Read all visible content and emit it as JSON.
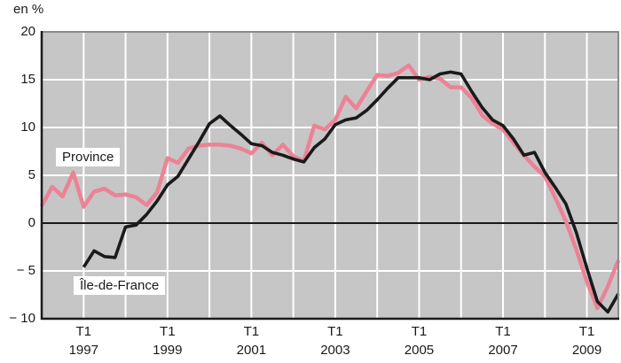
{
  "title": "en %",
  "legend": {
    "province_label": "Province",
    "idf_label": "Île-de-France"
  },
  "colors": {
    "plot_background": "#c6c6c6",
    "gridline": "#ffffff",
    "zero_line": "#1a1a1a",
    "border_dark": "#1a1a1a",
    "border_light": "#8a8a8a",
    "province_line": "#ec8296",
    "idf_line": "#1a1a1a"
  },
  "chart_data": {
    "type": "line",
    "title": "en %",
    "ylabel": "en %",
    "xlabel": "",
    "ylim": [
      -10,
      20
    ],
    "grid": true,
    "x": [
      "1996 T1",
      "1996 T2",
      "1996 T3",
      "1996 T4",
      "1997 T1",
      "1997 T2",
      "1997 T3",
      "1997 T4",
      "1998 T1",
      "1998 T2",
      "1998 T3",
      "1998 T4",
      "1999 T1",
      "1999 T2",
      "1999 T3",
      "1999 T4",
      "2000 T1",
      "2000 T2",
      "2000 T3",
      "2000 T4",
      "2001 T1",
      "2001 T2",
      "2001 T3",
      "2001 T4",
      "2002 T1",
      "2002 T2",
      "2002 T3",
      "2002 T4",
      "2003 T1",
      "2003 T2",
      "2003 T3",
      "2003 T4",
      "2004 T1",
      "2004 T2",
      "2004 T3",
      "2004 T4",
      "2005 T1",
      "2005 T2",
      "2005 T3",
      "2005 T4",
      "2006 T1",
      "2006 T2",
      "2006 T3",
      "2006 T4",
      "2007 T1",
      "2007 T2",
      "2007 T3",
      "2007 T4",
      "2008 T1",
      "2008 T2",
      "2008 T3",
      "2008 T4",
      "2009 T1",
      "2009 T2",
      "2009 T3",
      "2009 T4"
    ],
    "series": [
      {
        "name": "Province",
        "color": "#ec8296",
        "values": [
          1.8,
          3.8,
          2.8,
          5.3,
          1.7,
          3.3,
          3.6,
          2.9,
          3.0,
          2.7,
          1.9,
          3.2,
          6.8,
          6.3,
          7.8,
          8.1,
          8.2,
          8.2,
          8.1,
          7.8,
          7.3,
          8.4,
          7.1,
          8.2,
          7.0,
          6.5,
          10.2,
          9.8,
          10.8,
          13.2,
          12.0,
          13.8,
          15.5,
          15.4,
          15.7,
          16.5,
          15.0,
          15.3,
          15.1,
          14.2,
          14.2,
          13.1,
          11.3,
          10.4,
          9.8,
          8.4,
          7.1,
          5.9,
          4.9,
          2.6,
          0.2,
          -2.8,
          -6.1,
          -8.9,
          -6.6,
          -3.9
        ]
      },
      {
        "name": "Île-de-France",
        "color": "#1a1a1a",
        "values": [
          null,
          null,
          null,
          null,
          -4.6,
          -2.9,
          -3.5,
          -3.6,
          -0.4,
          -0.2,
          0.9,
          2.3,
          4.0,
          4.9,
          6.7,
          8.5,
          10.4,
          11.2,
          10.2,
          9.3,
          8.3,
          8.1,
          7.4,
          7.1,
          6.7,
          6.4,
          7.9,
          8.8,
          10.3,
          10.8,
          11.0,
          11.8,
          12.9,
          14.1,
          15.2,
          15.2,
          15.2,
          15.0,
          15.6,
          15.8,
          15.6,
          13.8,
          12.1,
          10.8,
          10.2,
          8.8,
          7.1,
          7.4,
          5.3,
          3.7,
          2.0,
          -1.0,
          -4.7,
          -8.2,
          -9.3,
          -7.4
        ]
      }
    ],
    "yticks": [
      {
        "value": 20,
        "label": "20"
      },
      {
        "value": 15,
        "label": "15"
      },
      {
        "value": 10,
        "label": "10"
      },
      {
        "value": 5,
        "label": "5"
      },
      {
        "value": 0,
        "label": "0"
      },
      {
        "value": -5,
        "label": "− 5"
      },
      {
        "value": -10,
        "label": "− 10"
      }
    ],
    "hgrid_values": [
      15,
      10,
      5,
      -5
    ],
    "vgrid_indices": [
      4,
      8,
      12,
      16,
      20,
      24,
      28,
      32,
      36,
      40,
      44,
      48,
      52
    ],
    "xticks": [
      {
        "index": 4,
        "period": "T1",
        "year": "1997"
      },
      {
        "index": 12,
        "period": "T1",
        "year": "1999"
      },
      {
        "index": 20,
        "period": "T1",
        "year": "2001"
      },
      {
        "index": 28,
        "period": "T1",
        "year": "2003"
      },
      {
        "index": 36,
        "period": "T1",
        "year": "2005"
      },
      {
        "index": 44,
        "period": "T1",
        "year": "2007"
      },
      {
        "index": 52,
        "period": "T1",
        "year": "2009"
      }
    ],
    "legend_position": "labels-on-chart"
  }
}
